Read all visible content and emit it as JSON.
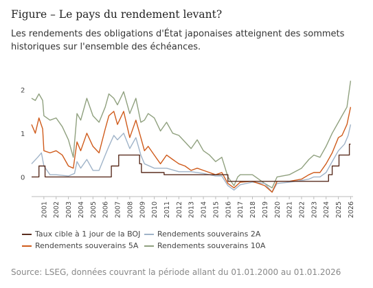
{
  "header": {
    "title": "Figure – Le pays du rendement levant?",
    "subtitle": "Les rendements des obligations d'État japonaises atteignent des sommets historiques sur l'ensemble des échéances."
  },
  "source": "Source: LSEG, données couvrant la période allant du 01.01.2000 au 01.01.2026",
  "chart_data": {
    "type": "line",
    "x_tick_labels": [
      "2001",
      "2002",
      "2003",
      "2004",
      "2005",
      "2006",
      "2007",
      "2008",
      "2009",
      "2010",
      "2011",
      "2012",
      "2013",
      "2014",
      "2015",
      "2016",
      "2017",
      "2018",
      "2019",
      "2020",
      "2021",
      "2022",
      "2023",
      "2024",
      "2025",
      "2026"
    ],
    "y_ticks": [
      0,
      1,
      2
    ],
    "xlim": [
      2000.0,
      2026.2
    ],
    "ylim": [
      -0.45,
      2.35
    ],
    "grid": false,
    "legend_position": "bottom",
    "series": [
      {
        "name": "Taux cible à 1 jour de la BOJ",
        "color": "#5a2d1f",
        "points": [
          [
            2000.0,
            0.0
          ],
          [
            2000.6,
            0.0
          ],
          [
            2000.6,
            0.25
          ],
          [
            2001.1,
            0.25
          ],
          [
            2001.1,
            0.0
          ],
          [
            2006.5,
            0.0
          ],
          [
            2006.5,
            0.25
          ],
          [
            2007.1,
            0.25
          ],
          [
            2007.1,
            0.5
          ],
          [
            2008.8,
            0.5
          ],
          [
            2008.8,
            0.3
          ],
          [
            2008.95,
            0.3
          ],
          [
            2008.95,
            0.1
          ],
          [
            2010.8,
            0.1
          ],
          [
            2010.8,
            0.05
          ],
          [
            2016.0,
            0.05
          ],
          [
            2016.0,
            -0.1
          ],
          [
            2024.2,
            -0.1
          ],
          [
            2024.2,
            0.05
          ],
          [
            2024.5,
            0.05
          ],
          [
            2024.5,
            0.25
          ],
          [
            2025.05,
            0.25
          ],
          [
            2025.05,
            0.5
          ],
          [
            2025.9,
            0.5
          ],
          [
            2025.9,
            0.75
          ],
          [
            2026.0,
            0.75
          ]
        ]
      },
      {
        "name": "Rendements souverains 2A",
        "color": "#9fb3c8",
        "points": [
          [
            2000.0,
            0.3
          ],
          [
            2000.5,
            0.45
          ],
          [
            2000.8,
            0.55
          ],
          [
            2001.0,
            0.25
          ],
          [
            2001.5,
            0.05
          ],
          [
            2002.0,
            0.05
          ],
          [
            2003.0,
            0.02
          ],
          [
            2003.5,
            0.08
          ],
          [
            2003.7,
            0.35
          ],
          [
            2004.0,
            0.2
          ],
          [
            2004.5,
            0.4
          ],
          [
            2005.0,
            0.15
          ],
          [
            2005.5,
            0.15
          ],
          [
            2006.0,
            0.5
          ],
          [
            2006.3,
            0.7
          ],
          [
            2006.7,
            0.95
          ],
          [
            2007.0,
            0.85
          ],
          [
            2007.5,
            1.0
          ],
          [
            2008.0,
            0.65
          ],
          [
            2008.5,
            0.9
          ],
          [
            2008.9,
            0.5
          ],
          [
            2009.2,
            0.3
          ],
          [
            2010.0,
            0.2
          ],
          [
            2011.0,
            0.2
          ],
          [
            2012.0,
            0.12
          ],
          [
            2013.0,
            0.12
          ],
          [
            2014.0,
            0.08
          ],
          [
            2015.0,
            0.02
          ],
          [
            2015.5,
            0.02
          ],
          [
            2016.0,
            -0.2
          ],
          [
            2016.5,
            -0.3
          ],
          [
            2017.0,
            -0.18
          ],
          [
            2018.0,
            -0.12
          ],
          [
            2019.0,
            -0.15
          ],
          [
            2019.6,
            -0.35
          ],
          [
            2020.0,
            -0.15
          ],
          [
            2021.0,
            -0.12
          ],
          [
            2022.0,
            -0.08
          ],
          [
            2022.6,
            -0.05
          ],
          [
            2023.0,
            0.0
          ],
          [
            2023.5,
            0.0
          ],
          [
            2024.0,
            0.1
          ],
          [
            2024.5,
            0.35
          ],
          [
            2025.0,
            0.6
          ],
          [
            2025.5,
            0.75
          ],
          [
            2025.8,
            0.95
          ],
          [
            2026.0,
            1.2
          ]
        ]
      },
      {
        "name": "Rendements souverains 5A",
        "color": "#cf5a1a",
        "points": [
          [
            2000.0,
            1.2
          ],
          [
            2000.3,
            1.0
          ],
          [
            2000.6,
            1.35
          ],
          [
            2000.9,
            1.1
          ],
          [
            2001.0,
            0.6
          ],
          [
            2001.5,
            0.55
          ],
          [
            2002.0,
            0.6
          ],
          [
            2002.5,
            0.5
          ],
          [
            2003.0,
            0.25
          ],
          [
            2003.4,
            0.2
          ],
          [
            2003.7,
            0.8
          ],
          [
            2004.0,
            0.6
          ],
          [
            2004.5,
            1.0
          ],
          [
            2005.0,
            0.7
          ],
          [
            2005.5,
            0.55
          ],
          [
            2006.0,
            1.1
          ],
          [
            2006.3,
            1.4
          ],
          [
            2006.7,
            1.5
          ],
          [
            2007.0,
            1.2
          ],
          [
            2007.5,
            1.5
          ],
          [
            2008.0,
            0.9
          ],
          [
            2008.5,
            1.3
          ],
          [
            2008.9,
            0.9
          ],
          [
            2009.2,
            0.6
          ],
          [
            2009.5,
            0.7
          ],
          [
            2010.0,
            0.5
          ],
          [
            2010.5,
            0.3
          ],
          [
            2011.0,
            0.5
          ],
          [
            2011.5,
            0.4
          ],
          [
            2012.0,
            0.3
          ],
          [
            2012.5,
            0.25
          ],
          [
            2013.0,
            0.15
          ],
          [
            2013.5,
            0.2
          ],
          [
            2014.0,
            0.15
          ],
          [
            2014.5,
            0.1
          ],
          [
            2015.0,
            0.05
          ],
          [
            2015.5,
            0.1
          ],
          [
            2016.0,
            -0.15
          ],
          [
            2016.5,
            -0.25
          ],
          [
            2017.0,
            -0.12
          ],
          [
            2018.0,
            -0.1
          ],
          [
            2019.0,
            -0.2
          ],
          [
            2019.6,
            -0.35
          ],
          [
            2020.0,
            -0.1
          ],
          [
            2021.0,
            -0.1
          ],
          [
            2022.0,
            -0.05
          ],
          [
            2022.6,
            0.05
          ],
          [
            2023.0,
            0.1
          ],
          [
            2023.5,
            0.1
          ],
          [
            2024.0,
            0.3
          ],
          [
            2024.5,
            0.55
          ],
          [
            2025.0,
            0.9
          ],
          [
            2025.3,
            0.95
          ],
          [
            2025.7,
            1.2
          ],
          [
            2026.0,
            1.6
          ]
        ]
      },
      {
        "name": "Rendements souverains 10A",
        "color": "#8fa07e",
        "points": [
          [
            2000.0,
            1.8
          ],
          [
            2000.3,
            1.75
          ],
          [
            2000.6,
            1.9
          ],
          [
            2000.9,
            1.75
          ],
          [
            2001.0,
            1.4
          ],
          [
            2001.5,
            1.3
          ],
          [
            2002.0,
            1.35
          ],
          [
            2002.5,
            1.15
          ],
          [
            2003.0,
            0.85
          ],
          [
            2003.4,
            0.45
          ],
          [
            2003.7,
            1.45
          ],
          [
            2004.0,
            1.3
          ],
          [
            2004.5,
            1.8
          ],
          [
            2005.0,
            1.4
          ],
          [
            2005.5,
            1.25
          ],
          [
            2006.0,
            1.6
          ],
          [
            2006.3,
            1.9
          ],
          [
            2006.7,
            1.8
          ],
          [
            2007.0,
            1.65
          ],
          [
            2007.5,
            1.95
          ],
          [
            2008.0,
            1.45
          ],
          [
            2008.5,
            1.8
          ],
          [
            2008.9,
            1.25
          ],
          [
            2009.2,
            1.3
          ],
          [
            2009.5,
            1.45
          ],
          [
            2010.0,
            1.35
          ],
          [
            2010.5,
            1.05
          ],
          [
            2011.0,
            1.25
          ],
          [
            2011.5,
            1.0
          ],
          [
            2012.0,
            0.95
          ],
          [
            2012.5,
            0.8
          ],
          [
            2013.0,
            0.65
          ],
          [
            2013.5,
            0.85
          ],
          [
            2014.0,
            0.6
          ],
          [
            2014.5,
            0.5
          ],
          [
            2015.0,
            0.35
          ],
          [
            2015.5,
            0.45
          ],
          [
            2016.0,
            0.0
          ],
          [
            2016.5,
            -0.2
          ],
          [
            2016.8,
            0.0
          ],
          [
            2017.0,
            0.05
          ],
          [
            2018.0,
            0.05
          ],
          [
            2019.0,
            -0.15
          ],
          [
            2019.6,
            -0.25
          ],
          [
            2020.0,
            0.0
          ],
          [
            2021.0,
            0.05
          ],
          [
            2022.0,
            0.2
          ],
          [
            2022.6,
            0.4
          ],
          [
            2023.0,
            0.5
          ],
          [
            2023.5,
            0.45
          ],
          [
            2024.0,
            0.7
          ],
          [
            2024.5,
            1.0
          ],
          [
            2025.0,
            1.25
          ],
          [
            2025.3,
            1.4
          ],
          [
            2025.7,
            1.6
          ],
          [
            2026.0,
            2.2
          ]
        ]
      }
    ]
  }
}
